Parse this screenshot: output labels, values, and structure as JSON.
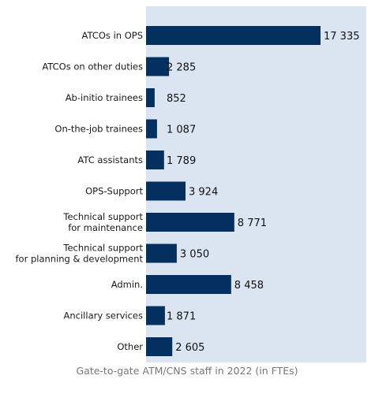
{
  "chart_data": {
    "type": "bar",
    "orientation": "horizontal",
    "caption": "Gate-to-gate ATM/CNS staff in 2022 (in FTEs)",
    "categories": [
      [
        "ATCOs in OPS"
      ],
      [
        "ATCOs on other duties"
      ],
      [
        "Ab-initio trainees"
      ],
      [
        "On-the-job trainees"
      ],
      [
        "ATC assistants"
      ],
      [
        "OPS-Support"
      ],
      [
        "Technical support",
        "for maintenance"
      ],
      [
        "Technical support",
        "for planning & development"
      ],
      [
        "Admin."
      ],
      [
        "Ancillary services"
      ],
      [
        "Other"
      ]
    ],
    "values": [
      17335,
      2285,
      852,
      1087,
      1789,
      3924,
      8771,
      3050,
      8458,
      1871,
      2605
    ],
    "value_labels": [
      "17 335",
      "2 285",
      "852",
      "1 087",
      "1 789",
      "3 924",
      "8 771",
      "3 050",
      "8 458",
      "1 871",
      "2 605"
    ],
    "xlim": [
      0,
      17335
    ],
    "grid": false,
    "legend": "none",
    "colors": {
      "bar": "#03305f",
      "plot_background": "#dbe5f1",
      "caption": "#777777"
    }
  }
}
